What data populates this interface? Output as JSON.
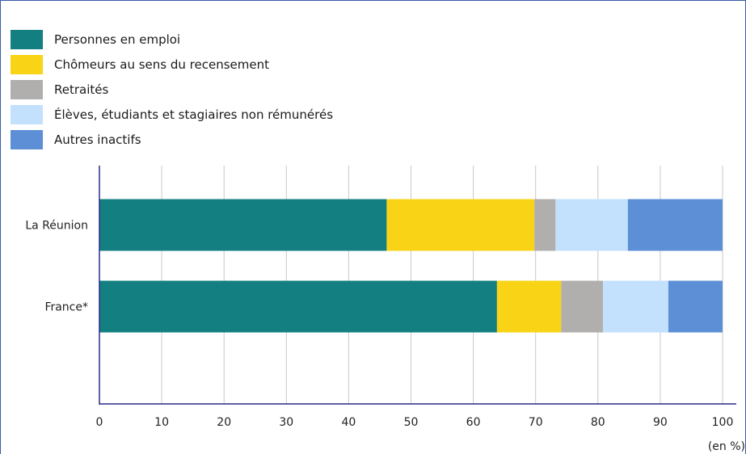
{
  "chart_data": {
    "type": "bar",
    "orientation": "horizontal",
    "stacked": true,
    "categories": [
      "La Réunion",
      "France*"
    ],
    "series": [
      {
        "name": "Personnes en emploi",
        "color": "#137f80",
        "values": [
          46.1,
          63.8
        ]
      },
      {
        "name": "Chômeurs au sens du recensement",
        "color": "#f9d416",
        "values": [
          23.7,
          10.3
        ]
      },
      {
        "name": "Retraités",
        "color": "#b0afae",
        "values": [
          3.4,
          6.7
        ]
      },
      {
        "name": "Élèves, étudiants et stagiaires non rémunérés",
        "color": "#c3e1fd",
        "values": [
          11.6,
          10.5
        ]
      },
      {
        "name": "Autres inactifs",
        "color": "#5d8fd6",
        "values": [
          15.2,
          8.7
        ]
      }
    ],
    "xticks": [
      0,
      10,
      20,
      30,
      40,
      50,
      60,
      70,
      80,
      90,
      100
    ],
    "xlim": [
      0,
      100
    ],
    "xlabel": "(en %)",
    "ylabel": "",
    "grid": "vertical",
    "legend_position": "top-left"
  }
}
